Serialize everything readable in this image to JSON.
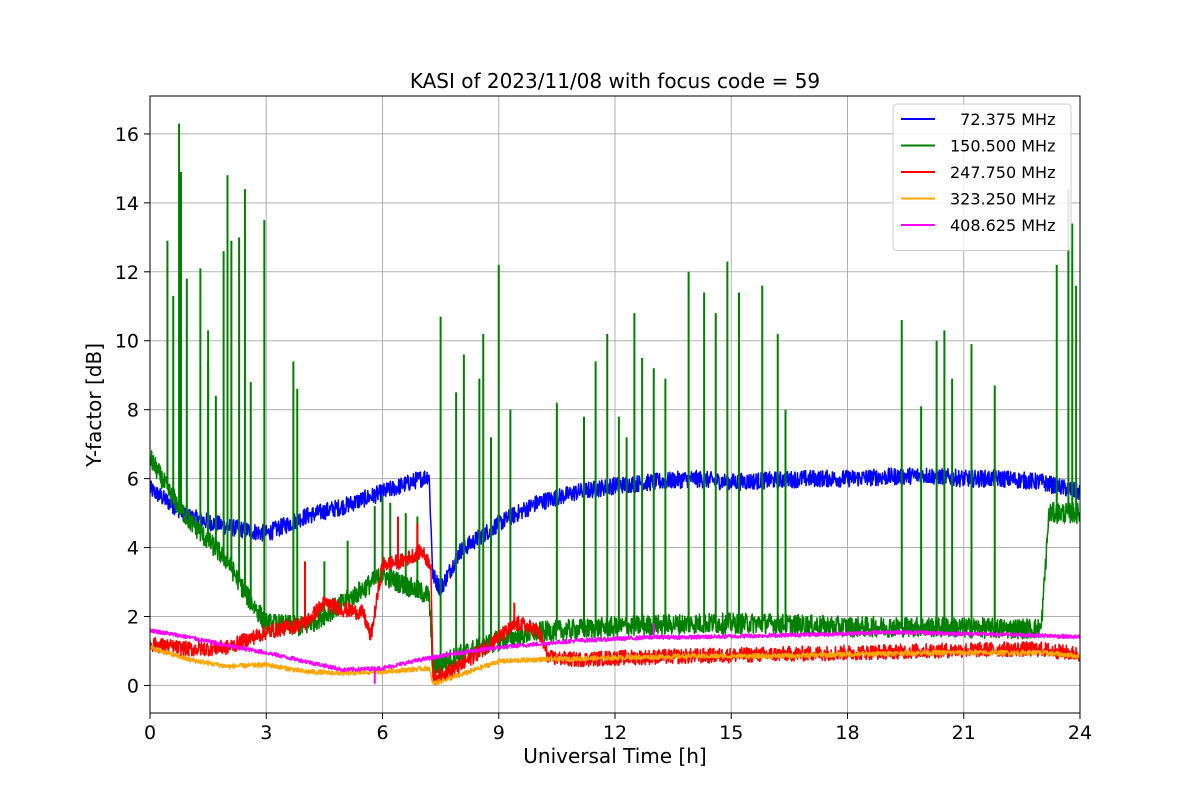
{
  "chart_data": {
    "type": "line",
    "title": "KASI of 2023/11/08 with focus code = 59",
    "xlabel": "Universal Time [h]",
    "ylabel": "Y-factor [dB]",
    "xlim": [
      0,
      24
    ],
    "ylim": [
      -0.8,
      17.1
    ],
    "xticks": [
      0,
      3,
      6,
      9,
      12,
      15,
      18,
      21,
      24
    ],
    "yticks": [
      0,
      2,
      4,
      6,
      8,
      10,
      12,
      14,
      16
    ],
    "grid": true,
    "legend_position": "upper-right",
    "series": [
      {
        "name": "  72.375 MHz",
        "color": "#0000ff",
        "baseline": [
          [
            0,
            5.7
          ],
          [
            1,
            4.9
          ],
          [
            2,
            4.6
          ],
          [
            3,
            4.4
          ],
          [
            4,
            4.9
          ],
          [
            5,
            5.2
          ],
          [
            6,
            5.6
          ],
          [
            7,
            6.0
          ],
          [
            7.2,
            6.1
          ],
          [
            7.3,
            3.2
          ],
          [
            7.5,
            2.8
          ],
          [
            8,
            3.9
          ],
          [
            9,
            4.7
          ],
          [
            10,
            5.3
          ],
          [
            11,
            5.6
          ],
          [
            12,
            5.8
          ],
          [
            13,
            5.9
          ],
          [
            14,
            6.0
          ],
          [
            15,
            5.9
          ],
          [
            16,
            5.95
          ],
          [
            17,
            6.0
          ],
          [
            18,
            6.0
          ],
          [
            19,
            6.05
          ],
          [
            20,
            6.1
          ],
          [
            21,
            6.0
          ],
          [
            22,
            6.0
          ],
          [
            23,
            5.9
          ],
          [
            24,
            5.6
          ]
        ],
        "noise": 0.25,
        "spikes": []
      },
      {
        "name": "150.500 MHz",
        "color": "#008000",
        "baseline": [
          [
            0,
            6.6
          ],
          [
            0.5,
            5.6
          ],
          [
            1,
            4.8
          ],
          [
            2,
            3.6
          ],
          [
            2.5,
            2.6
          ],
          [
            3,
            1.8
          ],
          [
            4,
            1.7
          ],
          [
            5,
            2.4
          ],
          [
            6,
            3.2
          ],
          [
            7.2,
            2.6
          ],
          [
            7.3,
            0.5
          ],
          [
            8,
            0.9
          ],
          [
            9,
            1.3
          ],
          [
            10,
            1.55
          ],
          [
            12,
            1.7
          ],
          [
            14,
            1.8
          ],
          [
            16,
            1.8
          ],
          [
            17,
            1.75
          ],
          [
            18,
            1.7
          ],
          [
            20,
            1.7
          ],
          [
            22,
            1.65
          ],
          [
            23,
            1.65
          ],
          [
            23.2,
            5.0
          ],
          [
            24,
            5.0
          ]
        ],
        "noise": 0.3,
        "spikes": [
          [
            0.45,
            12.9
          ],
          [
            0.6,
            11.3
          ],
          [
            0.75,
            16.3
          ],
          [
            0.8,
            14.9
          ],
          [
            0.95,
            11.8
          ],
          [
            1.3,
            12.1
          ],
          [
            1.5,
            9.4
          ],
          [
            1.5,
            10.3
          ],
          [
            1.7,
            8.4
          ],
          [
            1.9,
            12.6
          ],
          [
            2.0,
            14.8
          ],
          [
            2.1,
            12.9
          ],
          [
            2.3,
            13.0
          ],
          [
            2.45,
            14.4
          ],
          [
            2.6,
            8.8
          ],
          [
            2.95,
            13.5
          ],
          [
            3.7,
            9.4
          ],
          [
            3.8,
            8.6
          ],
          [
            4.5,
            3.6
          ],
          [
            5.1,
            4.2
          ],
          [
            5.8,
            5.2
          ],
          [
            6.0,
            5.5
          ],
          [
            6.2,
            5.3
          ],
          [
            6.6,
            5.0
          ],
          [
            6.9,
            4.9
          ],
          [
            7.5,
            10.7
          ],
          [
            7.9,
            8.5
          ],
          [
            8.1,
            9.6
          ],
          [
            8.5,
            8.9
          ],
          [
            8.6,
            10.2
          ],
          [
            8.8,
            7.2
          ],
          [
            9.0,
            12.2
          ],
          [
            9.3,
            8.0
          ],
          [
            10.5,
            8.2
          ],
          [
            11.2,
            7.8
          ],
          [
            11.5,
            9.4
          ],
          [
            11.8,
            10.2
          ],
          [
            12.1,
            7.8
          ],
          [
            12.3,
            7.2
          ],
          [
            12.5,
            10.8
          ],
          [
            12.7,
            9.5
          ],
          [
            13.0,
            9.2
          ],
          [
            13.3,
            8.9
          ],
          [
            13.9,
            12.0
          ],
          [
            14.3,
            11.4
          ],
          [
            14.6,
            10.8
          ],
          [
            14.9,
            12.3
          ],
          [
            15.2,
            11.4
          ],
          [
            15.8,
            11.6
          ],
          [
            16.2,
            10.2
          ],
          [
            16.4,
            8.0
          ],
          [
            19.4,
            10.6
          ],
          [
            19.9,
            8.1
          ],
          [
            20.3,
            10.0
          ],
          [
            20.5,
            10.3
          ],
          [
            20.7,
            8.9
          ],
          [
            21.2,
            9.9
          ],
          [
            21.8,
            8.7
          ],
          [
            23.4,
            12.2
          ],
          [
            23.7,
            14.4
          ],
          [
            23.8,
            13.4
          ],
          [
            23.9,
            11.6
          ]
        ]
      },
      {
        "name": "247.750 MHz",
        "color": "#ff0000",
        "baseline": [
          [
            0,
            1.2
          ],
          [
            1,
            1.05
          ],
          [
            2,
            1.1
          ],
          [
            3,
            1.55
          ],
          [
            4,
            1.8
          ],
          [
            4.5,
            2.4
          ],
          [
            5,
            2.2
          ],
          [
            5.5,
            2.1
          ],
          [
            5.7,
            1.4
          ],
          [
            6,
            3.5
          ],
          [
            6.5,
            3.6
          ],
          [
            7,
            3.9
          ],
          [
            7.25,
            3.5
          ],
          [
            7.3,
            0.2
          ],
          [
            8,
            0.55
          ],
          [
            9,
            1.4
          ],
          [
            9.5,
            1.8
          ],
          [
            10,
            1.6
          ],
          [
            10.3,
            0.8
          ],
          [
            11,
            0.75
          ],
          [
            12,
            0.8
          ],
          [
            14,
            0.85
          ],
          [
            16,
            0.9
          ],
          [
            18,
            0.95
          ],
          [
            20,
            1.0
          ],
          [
            22,
            1.05
          ],
          [
            23,
            1.05
          ],
          [
            24,
            0.9
          ]
        ],
        "noise": 0.22,
        "spikes": [
          [
            4.0,
            3.6
          ],
          [
            6.4,
            4.9
          ],
          [
            6.9,
            4.7
          ],
          [
            9.4,
            2.4
          ]
        ]
      },
      {
        "name": "323.250 MHz",
        "color": "#ffa500",
        "baseline": [
          [
            0,
            1.1
          ],
          [
            1,
            0.75
          ],
          [
            2,
            0.55
          ],
          [
            3,
            0.6
          ],
          [
            4,
            0.4
          ],
          [
            5,
            0.35
          ],
          [
            6,
            0.4
          ],
          [
            7.2,
            0.5
          ],
          [
            7.3,
            0.05
          ],
          [
            8,
            0.3
          ],
          [
            9,
            0.7
          ],
          [
            10,
            0.75
          ],
          [
            12,
            0.8
          ],
          [
            14,
            0.85
          ],
          [
            16,
            0.85
          ],
          [
            18,
            0.9
          ],
          [
            20,
            0.95
          ],
          [
            22,
            0.95
          ],
          [
            23,
            0.95
          ],
          [
            24,
            0.85
          ]
        ],
        "noise": 0.07,
        "spikes": []
      },
      {
        "name": "408.625 MHz",
        "color": "#ff00ff",
        "baseline": [
          [
            0,
            1.6
          ],
          [
            1,
            1.4
          ],
          [
            2,
            1.15
          ],
          [
            3,
            0.95
          ],
          [
            4,
            0.7
          ],
          [
            5,
            0.45
          ],
          [
            6,
            0.5
          ],
          [
            7,
            0.75
          ],
          [
            8,
            0.95
          ],
          [
            9,
            1.1
          ],
          [
            10,
            1.2
          ],
          [
            11,
            1.3
          ],
          [
            12,
            1.35
          ],
          [
            13,
            1.4
          ],
          [
            14,
            1.4
          ],
          [
            16,
            1.45
          ],
          [
            18,
            1.5
          ],
          [
            19,
            1.55
          ],
          [
            21,
            1.5
          ],
          [
            23,
            1.45
          ],
          [
            24,
            1.4
          ]
        ],
        "noise": 0.06,
        "spikes": [
          [
            13.0,
            1.8
          ],
          [
            5.8,
            0.05
          ]
        ]
      }
    ]
  }
}
